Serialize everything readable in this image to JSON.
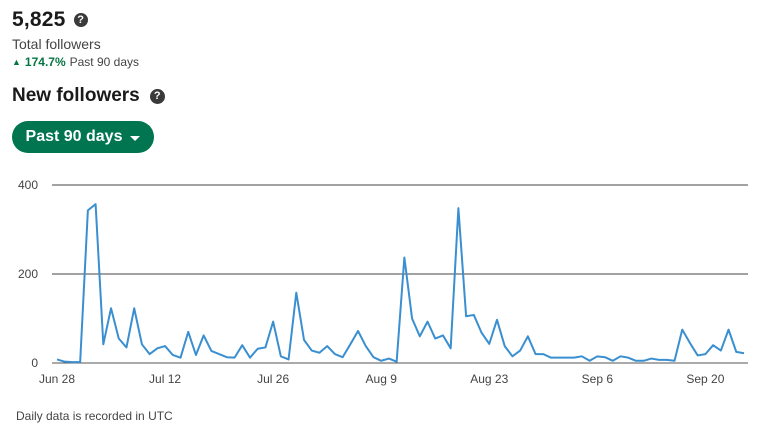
{
  "summary": {
    "total_followers": "5,825",
    "total_label": "Total followers",
    "change_value": "174.7%",
    "change_period": "Past 90 days"
  },
  "section": {
    "title": "New followers",
    "range_button_label": "Past 90 days"
  },
  "icons": {
    "help": "question-circle-icon",
    "up": "triangle-up-icon",
    "caret": "caret-down-icon"
  },
  "colors": {
    "accent": "#01754f",
    "positive": "#057642",
    "line": "#3a8fd0"
  },
  "footnote": "Daily data is recorded in UTC",
  "chart_data": {
    "type": "line",
    "title": "",
    "xlabel": "",
    "ylabel": "",
    "ylim": [
      0,
      400
    ],
    "yticks": [
      0,
      200,
      400
    ],
    "grid": true,
    "x_start": "Jun 28",
    "xticks": [
      {
        "label": "Jun 28",
        "index": 0
      },
      {
        "label": "Jul 12",
        "index": 14
      },
      {
        "label": "Jul 26",
        "index": 28
      },
      {
        "label": "Aug 9",
        "index": 42
      },
      {
        "label": "Aug 23",
        "index": 56
      },
      {
        "label": "Sep 6",
        "index": 70
      },
      {
        "label": "Sep 20",
        "index": 84
      }
    ],
    "series": [
      {
        "name": "",
        "values": [
          8,
          3,
          2,
          2,
          343,
          357,
          42,
          123,
          55,
          35,
          123,
          42,
          20,
          33,
          38,
          18,
          12,
          70,
          18,
          62,
          27,
          20,
          13,
          12,
          40,
          12,
          32,
          35,
          93,
          15,
          8,
          158,
          52,
          28,
          23,
          38,
          20,
          13,
          42,
          72,
          38,
          13,
          5,
          10,
          3,
          237,
          100,
          60,
          93,
          55,
          62,
          33,
          348,
          105,
          108,
          68,
          43,
          97,
          38,
          15,
          28,
          60,
          20,
          20,
          12,
          12,
          12,
          12,
          15,
          5,
          15,
          13,
          5,
          15,
          12,
          5,
          5,
          10,
          7,
          7,
          5,
          75,
          45,
          17,
          20,
          40,
          28,
          75,
          25,
          22
        ]
      }
    ]
  }
}
